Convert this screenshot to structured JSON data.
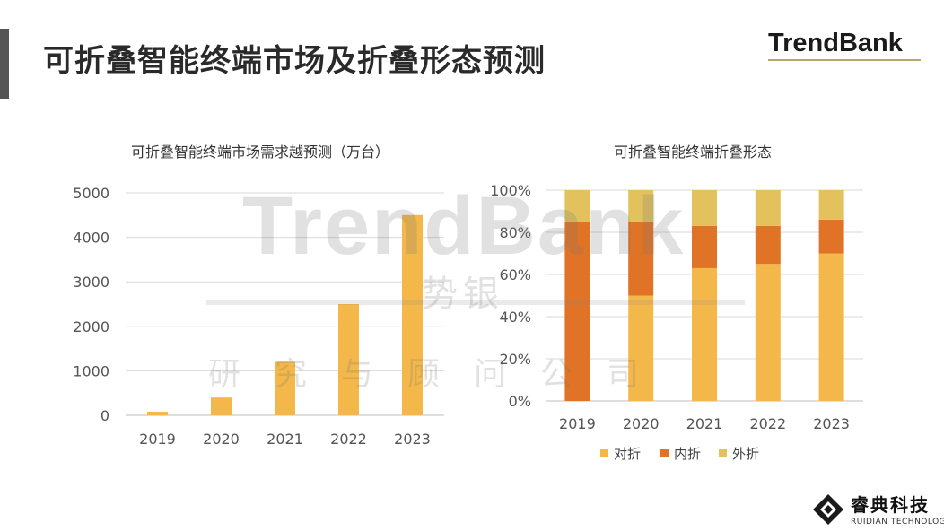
{
  "header": {
    "title": "可折叠智能终端市场及折叠形态预测",
    "brand": "TrendBank"
  },
  "watermark": {
    "main": "TrendBank",
    "cn": "势银",
    "sub": "研究与顾问公司"
  },
  "footer": {
    "company": "睿典科技",
    "company_en": "RUIDIAN TECHNOLOGY"
  },
  "chart_data": [
    {
      "type": "bar",
      "title": "可折叠智能终端市场需求越预测（万台）",
      "categories": [
        "2019",
        "2020",
        "2021",
        "2022",
        "2023"
      ],
      "values": [
        80,
        400,
        1200,
        2500,
        4500
      ],
      "ylim": [
        0,
        5000
      ],
      "yticks": [
        "0",
        "1000",
        "2000",
        "3000",
        "4000",
        "5000"
      ],
      "grid": true,
      "color": "#f4b84a"
    },
    {
      "type": "bar",
      "stacked": true,
      "title": "可折叠智能终端折叠形态",
      "categories": [
        "2019",
        "2020",
        "2021",
        "2022",
        "2023"
      ],
      "ylim": [
        0,
        100
      ],
      "yticks": [
        "0%",
        "20%",
        "40%",
        "60%",
        "80%",
        "100%"
      ],
      "grid": true,
      "legend_position": "bottom",
      "series": [
        {
          "name": "对折",
          "values": [
            0,
            50,
            63,
            65,
            70
          ],
          "color": "#f4b84a"
        },
        {
          "name": "内折",
          "values": [
            85,
            35,
            20,
            18,
            16
          ],
          "color": "#e07326"
        },
        {
          "name": "外折",
          "values": [
            15,
            15,
            17,
            17,
            14
          ],
          "color": "#e3c25d"
        }
      ]
    }
  ]
}
